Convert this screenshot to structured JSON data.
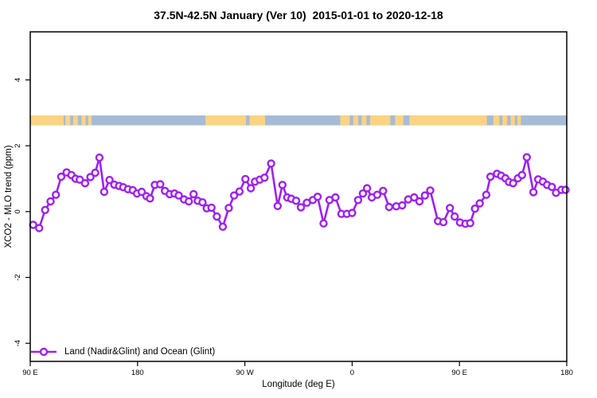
{
  "title": "37.5N-42.5N January (Ver 10)  2015-01-01 to 2020-12-18",
  "legend": {
    "label": "Land (Nadir&Glint) and Ocean (Glint)"
  },
  "colors": {
    "series": "#A020F0",
    "marker_fill": "#FFFFFF",
    "land": "#FBD382",
    "ocean": "#A6BBD6",
    "axis": "#000000"
  },
  "chart_data": {
    "type": "line",
    "title": "37.5N-42.5N January (Ver 10)  2015-01-01 to 2020-12-18",
    "xlabel": "Longitude (deg E)",
    "ylabel": "XCO2 - MLO trend (ppm)",
    "xlim": [
      90,
      540
    ],
    "ylim": [
      -4.55,
      5.46
    ],
    "grid": false,
    "legend_position": "bottom-left",
    "x_ticks": [
      {
        "v": 90,
        "label": "90 E"
      },
      {
        "v": 180,
        "label": "180"
      },
      {
        "v": 270,
        "label": "90 W"
      },
      {
        "v": 360,
        "label": "0"
      },
      {
        "v": 450,
        "label": "90 E"
      },
      {
        "v": 540,
        "label": "180"
      }
    ],
    "y_ticks": [
      {
        "v": -4,
        "label": "-4"
      },
      {
        "v": -2,
        "label": "-2"
      },
      {
        "v": 0,
        "label": "0"
      },
      {
        "v": 2,
        "label": "2"
      },
      {
        "v": 4,
        "label": "4"
      }
    ],
    "series": [
      {
        "name": "Land (Nadir&Glint) and Ocean (Glint)",
        "marker": "open-circle",
        "x": [
          92.5,
          97.5,
          102.5,
          107,
          111.5,
          116,
          120.5,
          124.5,
          128,
          131.5,
          136,
          140.5,
          144.5,
          148,
          152,
          156.5,
          160.5,
          164.5,
          168,
          172,
          176,
          179.5,
          183.5,
          187.5,
          190.5,
          194.5,
          199,
          203,
          207,
          211,
          214.5,
          219,
          223,
          227,
          230.5,
          234.5,
          238,
          242,
          246.5,
          251.5,
          256.5,
          261,
          265.5,
          270.5,
          275,
          278.5,
          282.5,
          286.5,
          292,
          297.5,
          301.5,
          305.5,
          309,
          313,
          317,
          322,
          327,
          331,
          336,
          341,
          346,
          351,
          355.5,
          360,
          365,
          369,
          372.5,
          376.5,
          381,
          386,
          391,
          397,
          402,
          407,
          412,
          416.5,
          421,
          425.5,
          432,
          436.5,
          442,
          446,
          450.5,
          455,
          459,
          463,
          467,
          472.5,
          476,
          481.5,
          485,
          488.5,
          491.5,
          495,
          499,
          502.5,
          506.5,
          512,
          516,
          520,
          523.5,
          527.5,
          531,
          535.5,
          539
        ],
        "y": [
          -0.4,
          -0.5,
          0.05,
          0.31,
          0.51,
          1.06,
          1.19,
          1.11,
          1.0,
          0.97,
          0.86,
          1.05,
          1.18,
          1.64,
          0.6,
          0.96,
          0.82,
          0.78,
          0.74,
          0.68,
          0.65,
          0.55,
          0.6,
          0.47,
          0.4,
          0.81,
          0.83,
          0.63,
          0.53,
          0.55,
          0.49,
          0.37,
          0.31,
          0.53,
          0.33,
          0.28,
          0.1,
          0.12,
          -0.15,
          -0.46,
          0.11,
          0.49,
          0.61,
          0.99,
          0.71,
          0.91,
          0.97,
          1.03,
          1.46,
          0.17,
          0.81,
          0.43,
          0.39,
          0.33,
          0.13,
          0.27,
          0.35,
          0.45,
          -0.36,
          0.35,
          0.43,
          -0.07,
          -0.07,
          -0.04,
          0.35,
          0.55,
          0.71,
          0.43,
          0.51,
          0.63,
          0.14,
          0.16,
          0.19,
          0.37,
          0.43,
          0.31,
          0.49,
          0.64,
          -0.29,
          -0.32,
          0.11,
          -0.15,
          -0.33,
          -0.37,
          -0.35,
          0.09,
          0.25,
          0.51,
          1.06,
          1.15,
          1.09,
          1.01,
          0.9,
          0.86,
          1.01,
          1.11,
          1.65,
          0.59,
          0.98,
          0.91,
          0.81,
          0.75,
          0.57,
          0.66,
          0.66
        ]
      }
    ],
    "surface_band": {
      "description": "land/ocean strip along longitude",
      "y_range": [
        2.62,
        2.92
      ],
      "ocean_color": "#A6BBD6",
      "land_color": "#FBD382",
      "land_segments_lon": [
        [
          90,
          118
        ],
        [
          119.5,
          123.5
        ],
        [
          126,
          130
        ],
        [
          133,
          136.5
        ],
        [
          138.5,
          141.5
        ],
        [
          237,
          287
        ],
        [
          350,
          473
        ],
        [
          478.5,
          483.5
        ],
        [
          486,
          490
        ],
        [
          493,
          496.5
        ],
        [
          498.5,
          501.5
        ]
      ],
      "water_patches_lon": [
        [
          271,
          274
        ],
        [
          358,
          361
        ],
        [
          365,
          368
        ],
        [
          372,
          375
        ],
        [
          392,
          396
        ],
        [
          403,
          408
        ]
      ]
    }
  }
}
